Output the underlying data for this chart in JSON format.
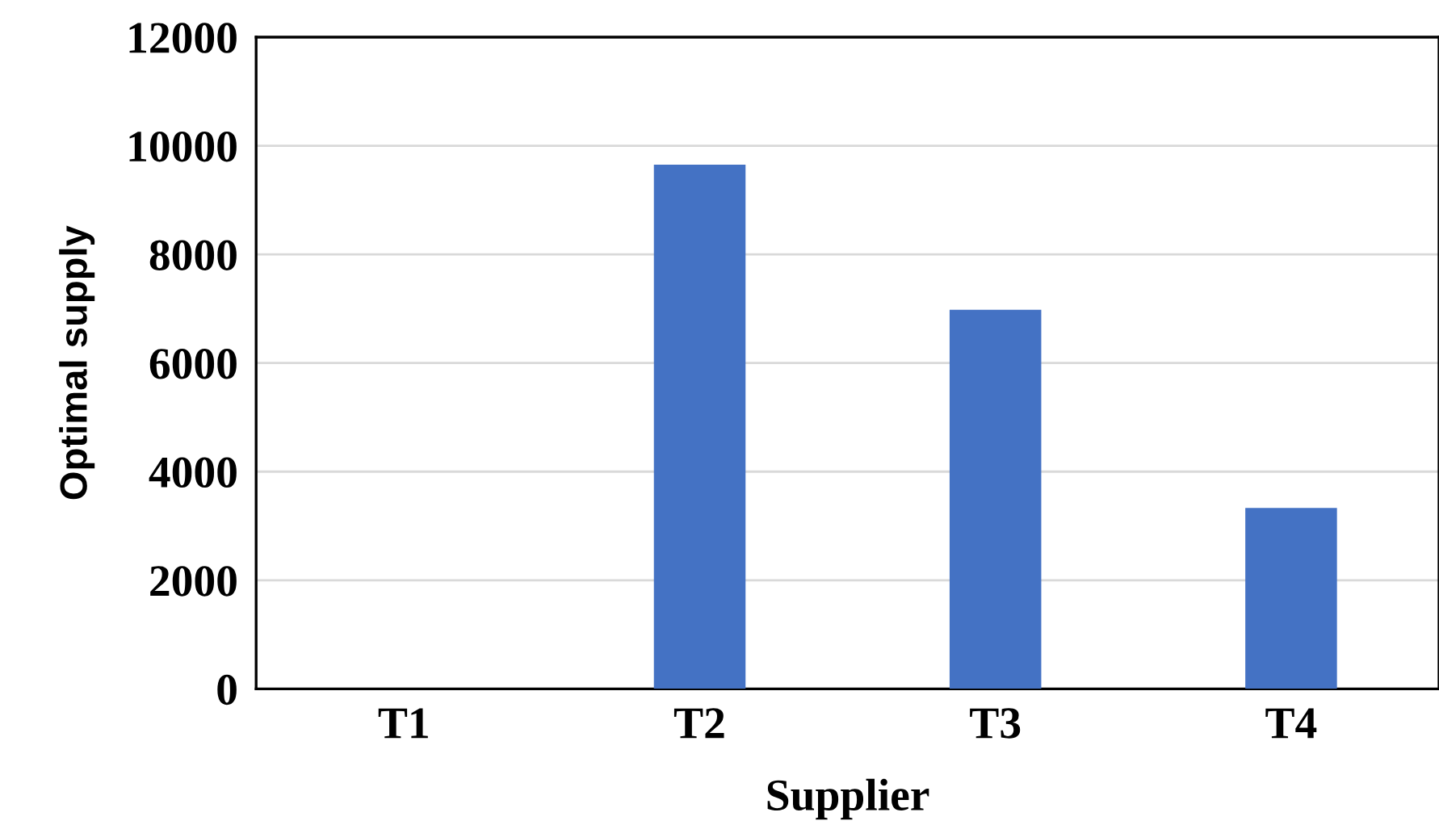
{
  "chart_data": {
    "type": "bar",
    "xlabel": "Supplier",
    "ylabel": "Optimal supply",
    "categories": [
      "T1",
      "T2",
      "T3",
      "T4"
    ],
    "values": [
      0,
      9650,
      6980,
      3330
    ],
    "color": "#4472c4",
    "ylim": [
      0,
      12000
    ],
    "yticks": [
      0,
      2000,
      4000,
      6000,
      8000,
      10000,
      12000
    ],
    "grid": "y"
  }
}
